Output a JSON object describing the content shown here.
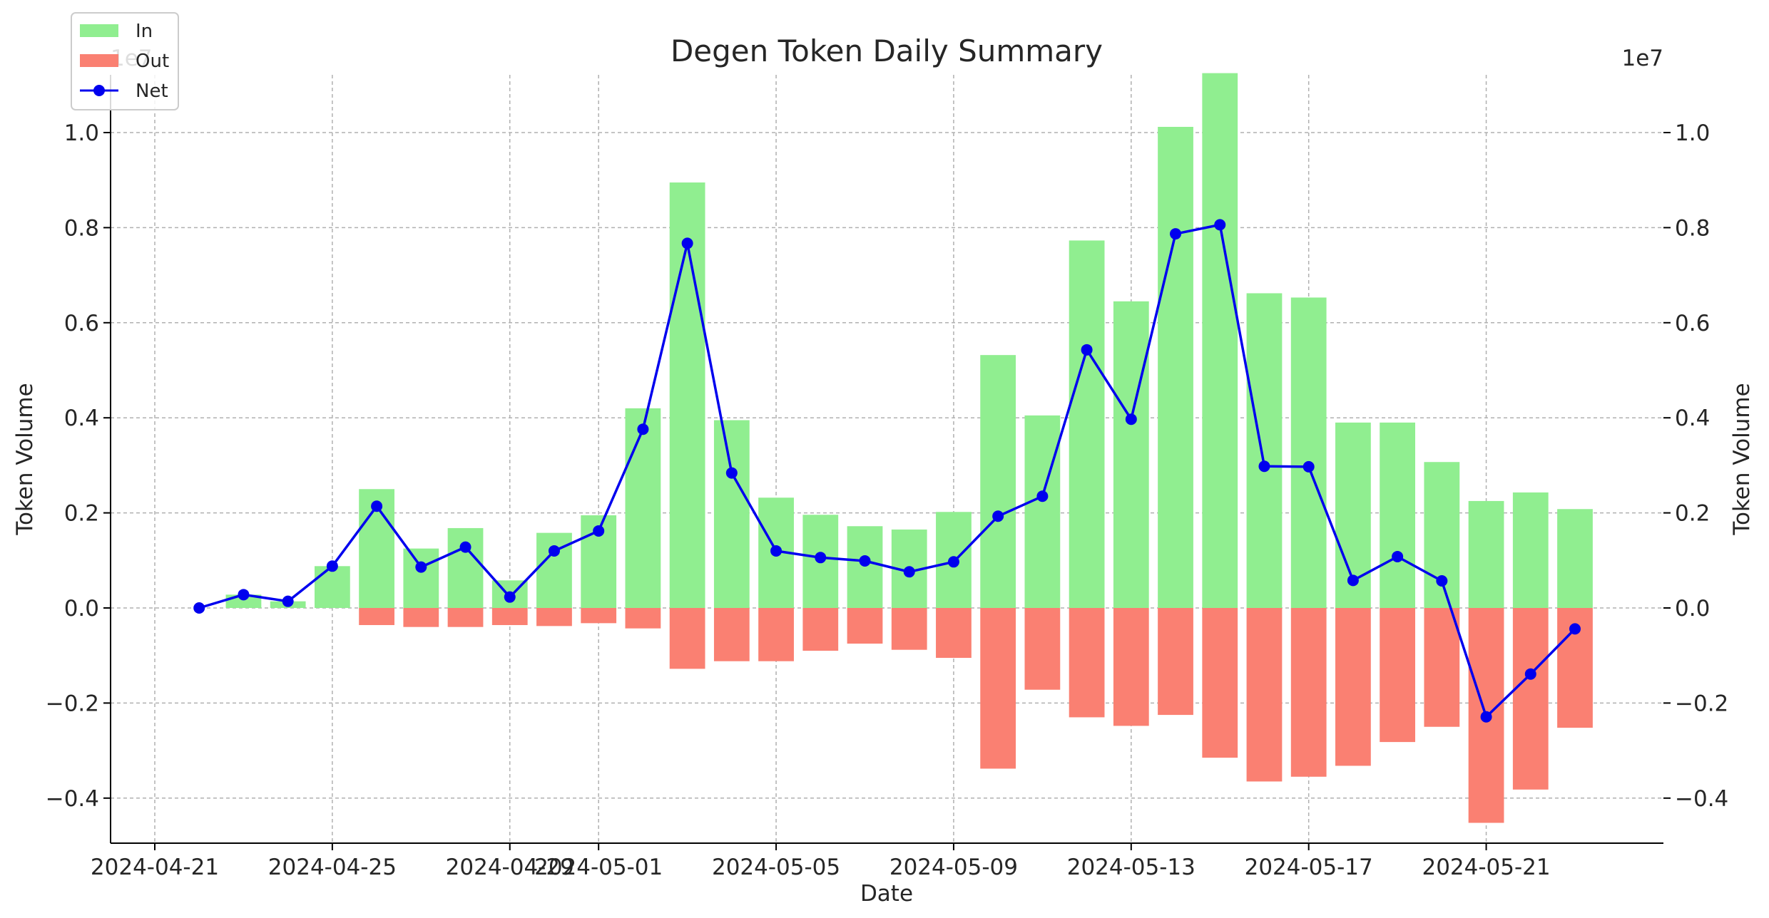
{
  "chart_data": {
    "type": "bar",
    "title": "Degen Token Daily Summary",
    "xlabel": "Date",
    "ylabel": "Token Volume",
    "ylabel_right": "Token Volume",
    "y_offset_text_left": "1e7",
    "y_offset_text_right": "1e7",
    "y_scale": 10000000,
    "ylim": [
      -0.5,
      1.1
    ],
    "y_ticks": [
      -0.4,
      -0.2,
      0.0,
      0.2,
      0.4,
      0.6,
      0.8,
      1.0
    ],
    "y_tick_labels": [
      "−0.4",
      "−0.2",
      "0.0",
      "0.2",
      "0.4",
      "0.6",
      "0.8",
      "1.0"
    ],
    "x_ticks": [
      "2024-04-21",
      "2024-04-25",
      "2024-04-29",
      "2024-05-01",
      "2024-05-05",
      "2024-05-09",
      "2024-05-13",
      "2024-05-17",
      "2024-05-21"
    ],
    "grid": true,
    "legend_position": "top-left",
    "colors": {
      "in": "#90ee90",
      "out": "#fa8072",
      "net": "#0000ee",
      "grid": "#b0b0b0"
    },
    "legend": [
      {
        "label": "In",
        "kind": "bar",
        "color": "#90ee90"
      },
      {
        "label": "Out",
        "kind": "bar",
        "color": "#fa8072"
      },
      {
        "label": "Net",
        "kind": "line",
        "color": "#0000ee"
      }
    ],
    "x": [
      "2024-04-22",
      "2024-04-23",
      "2024-04-24",
      "2024-04-25",
      "2024-04-26",
      "2024-04-27",
      "2024-04-28",
      "2024-04-29",
      "2024-04-30",
      "2024-05-01",
      "2024-05-02",
      "2024-05-03",
      "2024-05-04",
      "2024-05-05",
      "2024-05-06",
      "2024-05-07",
      "2024-05-08",
      "2024-05-09",
      "2024-05-10",
      "2024-05-11",
      "2024-05-12",
      "2024-05-13",
      "2024-05-14",
      "2024-05-15",
      "2024-05-16",
      "2024-05-17",
      "2024-05-18",
      "2024-05-19",
      "2024-05-20",
      "2024-05-21",
      "2024-05-22",
      "2024-05-23"
    ],
    "series": [
      {
        "name": "In",
        "values": [
          0.0,
          0.028,
          0.014,
          0.088,
          0.25,
          0.125,
          0.168,
          0.058,
          0.158,
          0.195,
          0.42,
          0.895,
          0.395,
          0.232,
          0.196,
          0.172,
          0.165,
          0.202,
          0.532,
          0.405,
          0.773,
          0.645,
          1.012,
          1.125,
          0.662,
          0.653,
          0.39,
          0.39,
          0.307,
          0.225,
          0.243,
          0.208
        ]
      },
      {
        "name": "Out",
        "values": [
          0.0,
          0.0,
          0.0,
          0.0,
          -0.036,
          -0.04,
          -0.04,
          -0.036,
          -0.038,
          -0.032,
          -0.043,
          -0.128,
          -0.112,
          -0.112,
          -0.09,
          -0.075,
          -0.088,
          -0.105,
          -0.338,
          -0.172,
          -0.23,
          -0.248,
          -0.225,
          -0.315,
          -0.365,
          -0.355,
          -0.332,
          -0.282,
          -0.25,
          -0.452,
          -0.382,
          -0.252
        ]
      },
      {
        "name": "Net",
        "values": [
          0.0,
          0.028,
          0.014,
          0.088,
          0.214,
          0.086,
          0.128,
          0.023,
          0.12,
          0.162,
          0.376,
          0.767,
          0.284,
          0.12,
          0.106,
          0.099,
          0.076,
          0.097,
          0.193,
          0.235,
          0.543,
          0.397,
          0.787,
          0.806,
          0.298,
          0.297,
          0.058,
          0.108,
          0.057,
          -0.229,
          -0.139,
          -0.044
        ]
      }
    ]
  }
}
